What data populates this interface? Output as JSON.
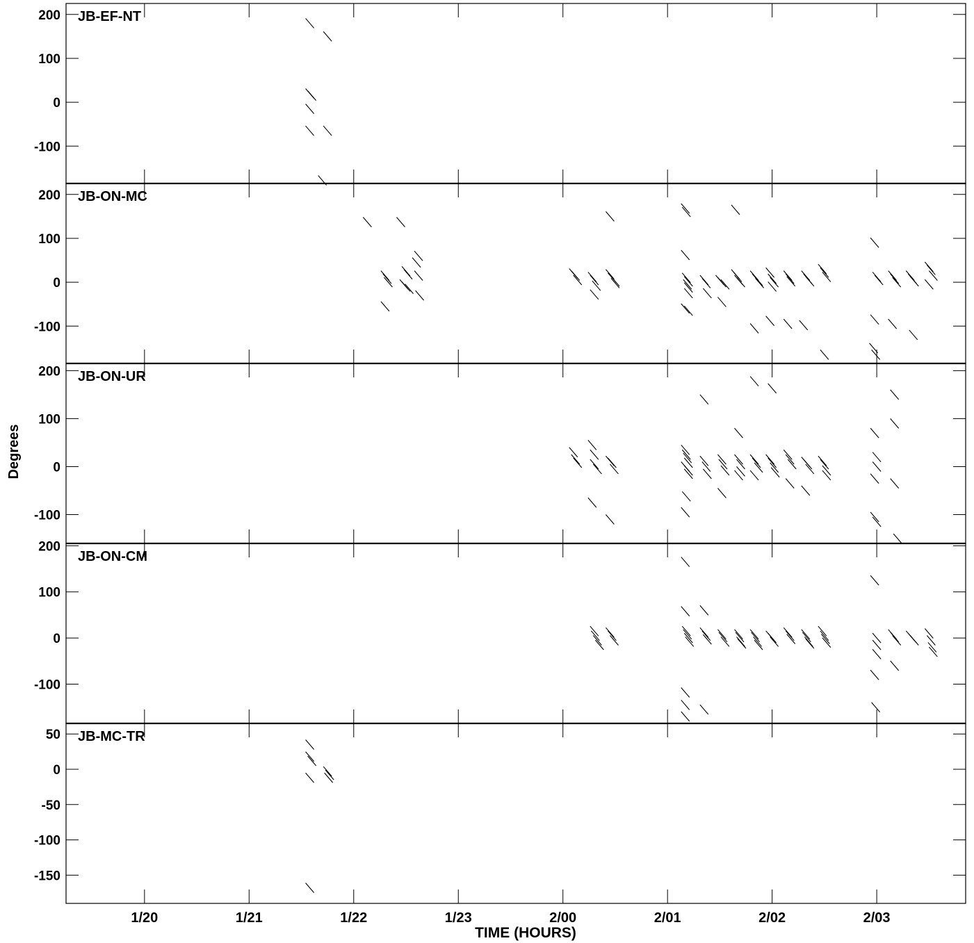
{
  "chart_data": {
    "type": "scatter",
    "description_style": "phase-vs-time",
    "ylabel": "Degrees",
    "xlabel": "TIME (HOURS)",
    "x_ticks": [
      "1/20",
      "1/21",
      "1/22",
      "1/23",
      "2/00",
      "2/01",
      "2/02",
      "2/03"
    ],
    "x_range_hours": [
      19.25,
      27.85
    ],
    "panels": [
      {
        "name": "JB-EF-NT",
        "ylim": [
          -185,
          225
        ],
        "yticks": [
          200,
          100,
          0,
          -100
        ],
        "points": [
          [
            21.58,
            180
          ],
          [
            21.75,
            150
          ],
          [
            21.58,
            20
          ],
          [
            21.6,
            15
          ],
          [
            21.58,
            -15
          ],
          [
            21.58,
            -65
          ],
          [
            21.75,
            -65
          ],
          [
            21.7,
            -178
          ]
        ]
      },
      {
        "name": "JB-ON-MC",
        "ylim": [
          -185,
          225
        ],
        "yticks": [
          200,
          100,
          0,
          -100
        ],
        "points": [
          [
            22.13,
            137
          ],
          [
            22.45,
            137
          ],
          [
            22.3,
            15
          ],
          [
            22.32,
            8
          ],
          [
            22.33,
            0
          ],
          [
            22.5,
            25
          ],
          [
            22.52,
            18
          ],
          [
            22.48,
            -5
          ],
          [
            22.5,
            -10
          ],
          [
            22.53,
            -15
          ],
          [
            22.3,
            -55
          ],
          [
            22.62,
            60
          ],
          [
            22.6,
            45
          ],
          [
            22.62,
            15
          ],
          [
            22.63,
            -30
          ],
          [
            24.1,
            20
          ],
          [
            24.12,
            15
          ],
          [
            24.14,
            5
          ],
          [
            24.28,
            12
          ],
          [
            24.3,
            5
          ],
          [
            24.32,
            -8
          ],
          [
            24.3,
            -28
          ],
          [
            24.45,
            18
          ],
          [
            24.47,
            10
          ],
          [
            24.5,
            2
          ],
          [
            24.5,
            -2
          ],
          [
            24.45,
            150
          ],
          [
            25.17,
            168
          ],
          [
            25.18,
            160
          ],
          [
            25.17,
            62
          ],
          [
            25.18,
            10
          ],
          [
            25.2,
            2
          ],
          [
            25.19,
            -5
          ],
          [
            25.2,
            -12
          ],
          [
            25.2,
            -25
          ],
          [
            25.17,
            -60
          ],
          [
            25.2,
            -65
          ],
          [
            25.35,
            5
          ],
          [
            25.37,
            -2
          ],
          [
            25.38,
            -25
          ],
          [
            25.5,
            5
          ],
          [
            25.52,
            0
          ],
          [
            25.55,
            -5
          ],
          [
            25.52,
            -45
          ],
          [
            25.65,
            18
          ],
          [
            25.67,
            12
          ],
          [
            25.68,
            5
          ],
          [
            25.7,
            0
          ],
          [
            25.65,
            165
          ],
          [
            25.83,
            15
          ],
          [
            25.85,
            8
          ],
          [
            25.87,
            3
          ],
          [
            25.88,
            -2
          ],
          [
            25.83,
            -105
          ],
          [
            25.98,
            22
          ],
          [
            26.0,
            8
          ],
          [
            26.02,
            0
          ],
          [
            26.0,
            -10
          ],
          [
            25.98,
            -88
          ],
          [
            26.15,
            15
          ],
          [
            26.17,
            8
          ],
          [
            26.18,
            2
          ],
          [
            26.15,
            -95
          ],
          [
            26.32,
            15
          ],
          [
            26.34,
            8
          ],
          [
            26.36,
            2
          ],
          [
            26.3,
            -98
          ],
          [
            26.48,
            30
          ],
          [
            26.5,
            22
          ],
          [
            26.52,
            12
          ],
          [
            26.5,
            -165
          ],
          [
            26.98,
            90
          ],
          [
            27.0,
            12
          ],
          [
            27.02,
            5
          ],
          [
            26.98,
            -85
          ],
          [
            27.15,
            15
          ],
          [
            27.17,
            8
          ],
          [
            27.19,
            0
          ],
          [
            27.15,
            -95
          ],
          [
            27.35,
            -120
          ],
          [
            27.32,
            15
          ],
          [
            27.34,
            8
          ],
          [
            27.36,
            2
          ],
          [
            27.5,
            35
          ],
          [
            27.52,
            28
          ],
          [
            27.54,
            15
          ],
          [
            27.5,
            -5
          ],
          [
            26.97,
            -150
          ],
          [
            26.99,
            -165
          ]
        ]
      },
      {
        "name": "JB-ON-UR",
        "ylim": [
          -160,
          215
        ],
        "yticks": [
          200,
          100,
          0,
          -100
        ],
        "points": [
          [
            24.1,
            30
          ],
          [
            24.12,
            15
          ],
          [
            24.14,
            8
          ],
          [
            24.28,
            45
          ],
          [
            24.3,
            25
          ],
          [
            24.3,
            5
          ],
          [
            24.33,
            -5
          ],
          [
            24.28,
            -75
          ],
          [
            24.45,
            12
          ],
          [
            24.47,
            8
          ],
          [
            24.49,
            -5
          ],
          [
            24.45,
            -110
          ],
          [
            25.17,
            35
          ],
          [
            25.18,
            25
          ],
          [
            25.19,
            18
          ],
          [
            25.2,
            8
          ],
          [
            25.17,
            0
          ],
          [
            25.2,
            -8
          ],
          [
            25.2,
            -15
          ],
          [
            25.18,
            -62
          ],
          [
            25.17,
            -95
          ],
          [
            25.35,
            140
          ],
          [
            25.35,
            12
          ],
          [
            25.37,
            0
          ],
          [
            25.38,
            -15
          ],
          [
            25.52,
            -55
          ],
          [
            25.52,
            15
          ],
          [
            25.53,
            5
          ],
          [
            25.55,
            -8
          ],
          [
            25.68,
            70
          ],
          [
            25.68,
            15
          ],
          [
            25.7,
            5
          ],
          [
            25.7,
            -10
          ],
          [
            25.68,
            -18
          ],
          [
            25.83,
            15
          ],
          [
            25.85,
            8
          ],
          [
            25.87,
            -2
          ],
          [
            25.83,
            -18
          ],
          [
            25.83,
            178
          ],
          [
            26.0,
            163
          ],
          [
            25.98,
            15
          ],
          [
            26.0,
            8
          ],
          [
            26.02,
            -2
          ],
          [
            26.03,
            -12
          ],
          [
            26.15,
            25
          ],
          [
            26.17,
            15
          ],
          [
            26.19,
            5
          ],
          [
            26.17,
            -35
          ],
          [
            26.32,
            10
          ],
          [
            26.34,
            5
          ],
          [
            26.36,
            -5
          ],
          [
            26.32,
            -50
          ],
          [
            26.48,
            12
          ],
          [
            26.5,
            5
          ],
          [
            26.52,
            -8
          ],
          [
            26.52,
            -18
          ],
          [
            26.98,
            70
          ],
          [
            27.0,
            20
          ],
          [
            27.0,
            0
          ],
          [
            26.98,
            -25
          ],
          [
            26.98,
            -105
          ],
          [
            27.0,
            -115
          ],
          [
            27.17,
            150
          ],
          [
            27.17,
            90
          ],
          [
            27.17,
            -35
          ],
          [
            27.2,
            -150
          ]
        ]
      },
      {
        "name": "JB-ON-CM",
        "ylim": [
          -185,
          205
        ],
        "yticks": [
          200,
          100,
          0,
          -100
        ],
        "points": [
          [
            24.3,
            15
          ],
          [
            24.31,
            5
          ],
          [
            24.33,
            -5
          ],
          [
            24.35,
            -15
          ],
          [
            24.45,
            12
          ],
          [
            24.47,
            5
          ],
          [
            24.49,
            -5
          ],
          [
            25.17,
            165
          ],
          [
            25.17,
            58
          ],
          [
            25.18,
            15
          ],
          [
            25.19,
            8
          ],
          [
            25.2,
            0
          ],
          [
            25.21,
            -8
          ],
          [
            25.17,
            -118
          ],
          [
            25.17,
            -145
          ],
          [
            25.17,
            -170
          ],
          [
            25.35,
            60
          ],
          [
            25.35,
            12
          ],
          [
            25.37,
            5
          ],
          [
            25.38,
            -3
          ],
          [
            25.35,
            -155
          ],
          [
            25.52,
            8
          ],
          [
            25.53,
            2
          ],
          [
            25.55,
            -8
          ],
          [
            25.68,
            8
          ],
          [
            25.69,
            2
          ],
          [
            25.7,
            -8
          ],
          [
            25.71,
            -12
          ],
          [
            25.83,
            8
          ],
          [
            25.84,
            2
          ],
          [
            25.86,
            -8
          ],
          [
            25.87,
            -15
          ],
          [
            25.98,
            5
          ],
          [
            26.0,
            0
          ],
          [
            26.02,
            -8
          ],
          [
            26.15,
            12
          ],
          [
            26.17,
            5
          ],
          [
            26.18,
            -2
          ],
          [
            26.32,
            8
          ],
          [
            26.33,
            2
          ],
          [
            26.35,
            -8
          ],
          [
            26.36,
            -12
          ],
          [
            26.48,
            15
          ],
          [
            26.5,
            5
          ],
          [
            26.51,
            -2
          ],
          [
            26.52,
            -10
          ],
          [
            26.98,
            125
          ],
          [
            27.0,
            0
          ],
          [
            27.0,
            -15
          ],
          [
            27.0,
            -35
          ],
          [
            26.98,
            -80
          ],
          [
            26.99,
            -150
          ],
          [
            27.15,
            8
          ],
          [
            27.17,
            2
          ],
          [
            27.19,
            -5
          ],
          [
            27.17,
            -60
          ],
          [
            27.32,
            5
          ],
          [
            27.34,
            0
          ],
          [
            27.36,
            -5
          ],
          [
            27.5,
            10
          ],
          [
            27.52,
            -5
          ],
          [
            27.53,
            -20
          ],
          [
            27.54,
            -30
          ]
        ]
      },
      {
        "name": "JB-MC-TR",
        "ylim": [
          -190,
          65
        ],
        "yticks": [
          50,
          0,
          -50,
          -100,
          -150
        ],
        "points": [
          [
            21.58,
            35
          ],
          [
            21.58,
            18
          ],
          [
            21.6,
            12
          ],
          [
            21.58,
            -12
          ],
          [
            21.75,
            -3
          ],
          [
            21.77,
            -8
          ],
          [
            21.76,
            -12
          ],
          [
            21.58,
            -168
          ]
        ]
      }
    ]
  }
}
